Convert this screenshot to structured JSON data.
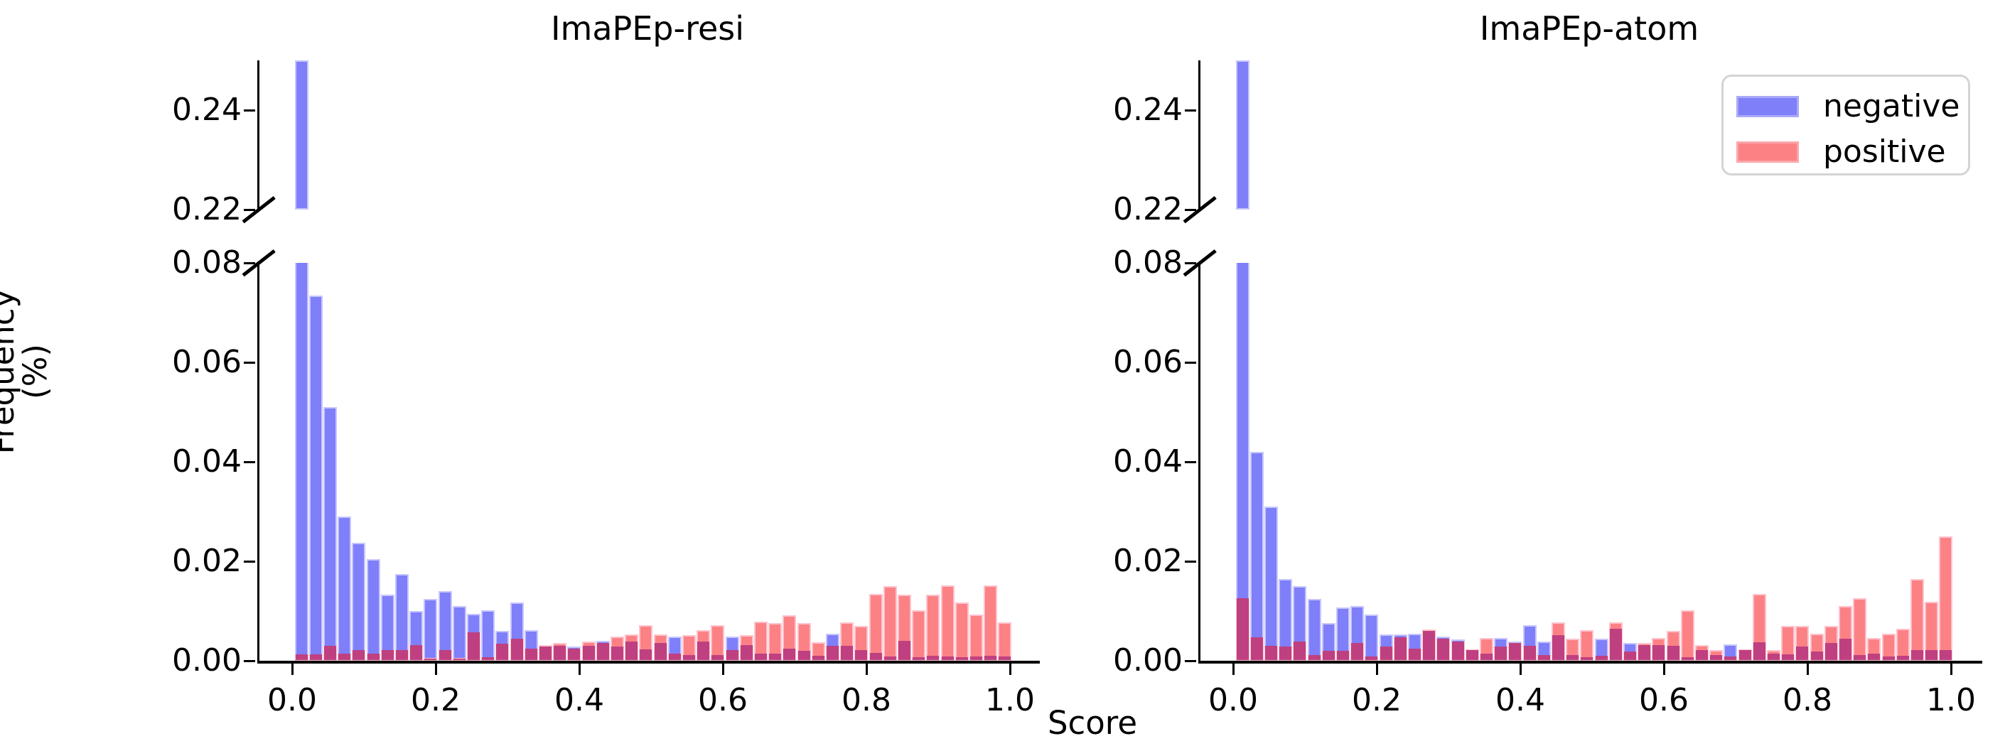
{
  "figure": {
    "ylabel": "Frequency (%)",
    "xlabel": "Score",
    "background": "#ffffff"
  },
  "legend": {
    "entries": [
      {
        "label": "negative",
        "color": "#7f7ffa",
        "edge": "#a9a9f7"
      },
      {
        "label": "positive",
        "color": "#fb8185",
        "edge": "#fba6ab"
      }
    ]
  },
  "colors": {
    "negative_fill": "#7f7ffa",
    "negative_edge": "#c6c6fd",
    "positive_fill": "#fb8185",
    "positive_edge": "#fdc2cc",
    "overlap_fill": "#bf4080",
    "axis": "#000000",
    "legend_border": "#d4d4d4"
  },
  "chart_data": [
    {
      "type": "bar",
      "subtype": "overlaid-histogram-broken-y-axis",
      "title": "ImaPEp-resi",
      "xlabel": "Score",
      "ylabel": "Frequency (%)",
      "bin_start": 0.0,
      "bin_width": 0.02,
      "x_ticks": [
        "0.0",
        "0.2",
        "0.4",
        "0.6",
        "0.8",
        "1.0"
      ],
      "y_ticks_lower": [
        "0.08",
        "0.06",
        "0.04",
        "0.02",
        "0.00"
      ],
      "y_ticks_upper": [
        "0.24",
        "0.22"
      ],
      "ylim_lower": [
        0.0,
        0.08
      ],
      "ylim_upper": [
        0.22,
        0.25
      ],
      "first_negative_bin_clipped_at": 0.25,
      "grid": false,
      "series": [
        {
          "name": "negative",
          "values": [
            0.25,
            0.0734,
            0.051,
            0.029,
            0.0237,
            0.0205,
            0.0133,
            0.0174,
            0.01,
            0.0125,
            0.014,
            0.011,
            0.0094,
            0.0102,
            0.006,
            0.0117,
            0.0062,
            0.0028,
            0.003,
            0.0029,
            0.003,
            0.004,
            0.0029,
            0.0038,
            0.0023,
            0.0036,
            0.0048,
            0.0012,
            0.0038,
            0.0012,
            0.0048,
            0.0031,
            0.0014,
            0.0014,
            0.0024,
            0.002,
            0.001,
            0.0055,
            0.003,
            0.0021,
            0.0016,
            0.0009,
            0.004,
            0.0007,
            0.001,
            0.0008,
            0.0007,
            0.0008,
            0.001,
            0.0009
          ]
        },
        {
          "name": "positive",
          "values": [
            0.0013,
            0.0013,
            0.003,
            0.0014,
            0.0021,
            0.0015,
            0.0022,
            0.0022,
            0.0031,
            0.0005,
            0.0021,
            0.0005,
            0.0057,
            0.0007,
            0.0035,
            0.0045,
            0.0024,
            0.0032,
            0.0036,
            0.0024,
            0.0038,
            0.0036,
            0.0048,
            0.0053,
            0.0071,
            0.0053,
            0.0014,
            0.0051,
            0.0062,
            0.0072,
            0.0021,
            0.0052,
            0.0079,
            0.0076,
            0.0091,
            0.0076,
            0.0037,
            0.003,
            0.0077,
            0.007,
            0.0134,
            0.015,
            0.0133,
            0.0101,
            0.0133,
            0.0151,
            0.0117,
            0.0093,
            0.0151,
            0.0077
          ]
        }
      ]
    },
    {
      "type": "bar",
      "subtype": "overlaid-histogram-broken-y-axis",
      "title": "ImaPEp-atom",
      "xlabel": "Score",
      "ylabel": "Frequency (%)",
      "bin_start": 0.0,
      "bin_width": 0.02,
      "x_ticks": [
        "0.0",
        "0.2",
        "0.4",
        "0.6",
        "0.8",
        "1.0"
      ],
      "y_ticks_lower": [
        "0.08",
        "0.06",
        "0.04",
        "0.02",
        "0.00"
      ],
      "y_ticks_upper": [
        "0.24",
        "0.22"
      ],
      "ylim_lower": [
        0.0,
        0.08
      ],
      "ylim_upper": [
        0.22,
        0.25
      ],
      "first_negative_bin_clipped_at": 0.25,
      "grid": false,
      "series": [
        {
          "name": "negative",
          "values": [
            0.25,
            0.042,
            0.031,
            0.0164,
            0.015,
            0.0125,
            0.0076,
            0.0107,
            0.011,
            0.0093,
            0.0053,
            0.0053,
            0.0055,
            0.006,
            0.0049,
            0.0043,
            0.0021,
            0.0014,
            0.0046,
            0.0039,
            0.0071,
            0.0038,
            0.0052,
            0.0012,
            0.0007,
            0.0045,
            0.0064,
            0.0036,
            0.0031,
            0.0031,
            0.003,
            0.0007,
            0.0021,
            0.0012,
            0.0033,
            0.0021,
            0.0037,
            0.0014,
            0.0013,
            0.0029,
            0.0019,
            0.0036,
            0.0045,
            0.0012,
            0.0015,
            0.0008,
            0.001,
            0.0022,
            0.0022,
            0.0022
          ]
        },
        {
          "name": "positive",
          "values": [
            0.0126,
            0.0047,
            0.003,
            0.0029,
            0.0038,
            0.0012,
            0.002,
            0.002,
            0.0036,
            0.0009,
            0.0029,
            0.0047,
            0.0024,
            0.0063,
            0.0045,
            0.0038,
            0.0023,
            0.0046,
            0.0029,
            0.0036,
            0.003,
            0.0012,
            0.0077,
            0.0045,
            0.0062,
            0.001,
            0.0077,
            0.0019,
            0.0036,
            0.0046,
            0.006,
            0.0101,
            0.0031,
            0.0021,
            0.0008,
            0.0023,
            0.0134,
            0.0021,
            0.007,
            0.007,
            0.0055,
            0.007,
            0.011,
            0.0126,
            0.0046,
            0.0055,
            0.0065,
            0.0165,
            0.0118,
            0.025
          ]
        }
      ]
    }
  ]
}
